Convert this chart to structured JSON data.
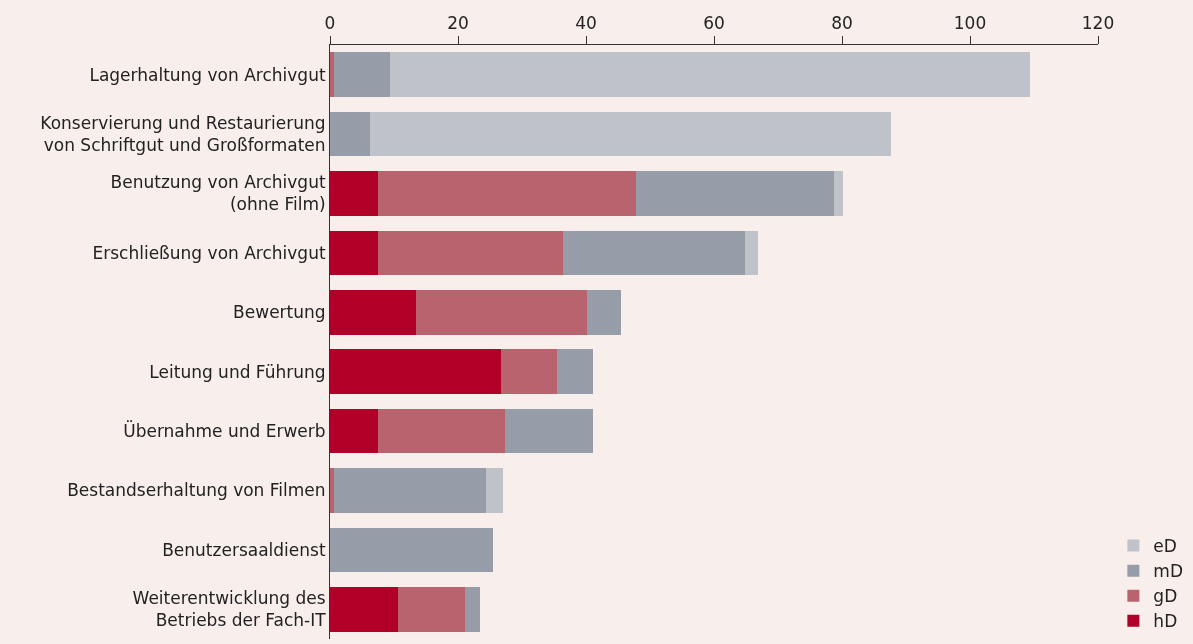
{
  "chart_data": {
    "type": "bar",
    "orientation": "horizontal",
    "stacked": true,
    "categories": [
      "Lagerhaltung von Archivgut",
      "Konservierung und Restaurierung\nvon Schriftgut und Großformaten",
      "Benutzung von Archivgut\n(ohne Film)",
      "Erschließung von Archivgut",
      "Bewertung",
      "Leitung und Führung",
      "Übernahme und Erwerb",
      "Bestandserhaltung von Filmen",
      "Benutzersaaldienst",
      "Weiterentwicklung des\nBetriebs der Fach-IT"
    ],
    "series": [
      {
        "name": "hD",
        "color": "#b0002a",
        "values": [
          0,
          0,
          7.5,
          7.5,
          13.5,
          26.7,
          7.5,
          0,
          null,
          10.6
        ]
      },
      {
        "name": "gD",
        "color": "#b9636e",
        "values": [
          0.6,
          0,
          40.3,
          28.9,
          26.7,
          8.7,
          19.8,
          0.6,
          0,
          10.5
        ]
      },
      {
        "name": "mD",
        "color": "#969ca8",
        "values": [
          8.8,
          6.2,
          30.9,
          28.5,
          5.3,
          5.7,
          13.8,
          23.8,
          25.5,
          2.3
        ]
      },
      {
        "name": "eD",
        "color": "#bfc2c9",
        "values": [
          99.9,
          81.4,
          1.5,
          1.9,
          0,
          0,
          0,
          2.6,
          0,
          0
        ]
      }
    ],
    "xlim": [
      0,
      120
    ],
    "xticks": [
      0,
      20,
      40,
      60,
      80,
      100,
      120
    ],
    "grid": false,
    "legend": "right"
  }
}
